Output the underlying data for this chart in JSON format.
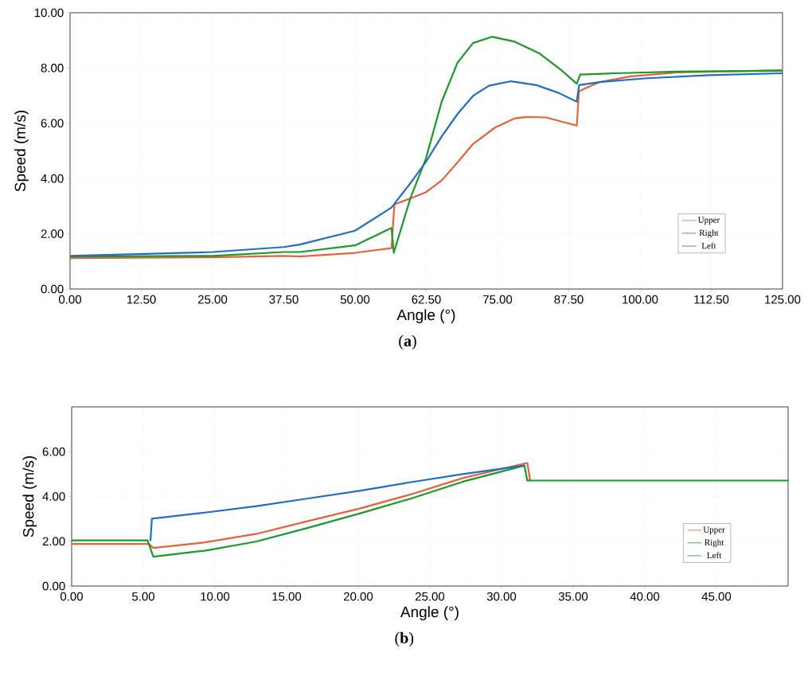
{
  "chart_data": [
    {
      "type": "line",
      "xlabel": "Angle (°)",
      "ylabel": "Speed (m/s)",
      "annotations": [
        "(**a**)"
      ],
      "xlim": [
        0,
        125
      ],
      "ylim": [
        0,
        10
      ],
      "xticks": [
        {
          "value": 0,
          "label": "0.00"
        },
        {
          "value": 12.5,
          "label": "12.50"
        },
        {
          "value": 25,
          "label": "25.00"
        },
        {
          "value": 37.5,
          "label": "37.50"
        },
        {
          "value": 50,
          "label": "50.00"
        },
        {
          "value": 62.5,
          "label": "62.50"
        },
        {
          "value": 75,
          "label": "75.00"
        },
        {
          "value": 87.5,
          "label": "87.50"
        },
        {
          "value": 100,
          "label": "100.00"
        },
        {
          "value": 112.5,
          "label": "112.50"
        },
        {
          "value": 125,
          "label": "125.00"
        }
      ],
      "yticks": [
        {
          "value": 0,
          "label": "0.00"
        },
        {
          "value": 2,
          "label": "2.00"
        },
        {
          "value": 4,
          "label": "4.00"
        },
        {
          "value": 6,
          "label": "6.00"
        },
        {
          "value": 8,
          "label": "8.00"
        },
        {
          "value": 10,
          "label": "10.00"
        }
      ],
      "grid": true,
      "legend": "bottom right",
      "marker": "none",
      "line_style": "solid",
      "series": [
        {
          "name": "Upper",
          "color": "#e8613a",
          "x": [
            0,
            25,
            37.5,
            40.3,
            50,
            56.4,
            56.9,
            59.7,
            62.4,
            65.2,
            68.0,
            70.7,
            74.6,
            77.9,
            80.1,
            83.5,
            86.8,
            88.9,
            89.3,
            92.9,
            98.4,
            106.7,
            125
          ],
          "values": [
            1.12,
            1.15,
            1.2,
            1.18,
            1.31,
            1.48,
            3.06,
            3.28,
            3.5,
            3.93,
            4.59,
            5.25,
            5.85,
            6.17,
            6.23,
            6.21,
            6.03,
            5.92,
            7.16,
            7.49,
            7.7,
            7.84,
            7.92
          ]
        },
        {
          "name": "Right",
          "color": "#1a9a2a",
          "x": [
            0,
            25,
            37.5,
            40.3,
            50,
            56.4,
            56.8,
            59.7,
            62.4,
            65.2,
            68.0,
            70.7,
            74.0,
            77.9,
            82.4,
            86.2,
            88.9,
            89.5,
            95.6,
            106.7,
            125
          ],
          "values": [
            1.18,
            1.2,
            1.34,
            1.34,
            1.58,
            2.21,
            1.31,
            3.28,
            4.7,
            6.78,
            8.2,
            8.9,
            9.13,
            8.96,
            8.52,
            7.92,
            7.43,
            7.76,
            7.81,
            7.87,
            7.9
          ]
        },
        {
          "name": "Left",
          "color": "#1f6fc4",
          "x": [
            0,
            25,
            37.5,
            40.3,
            50,
            56.4,
            59.7,
            62.4,
            65.2,
            68.0,
            70.7,
            73.5,
            77.4,
            81.8,
            85.7,
            88.9,
            89.3,
            92.9,
            101.2,
            112.2,
            125
          ],
          "values": [
            1.2,
            1.34,
            1.52,
            1.61,
            2.11,
            2.95,
            3.83,
            4.59,
            5.52,
            6.34,
            6.99,
            7.36,
            7.52,
            7.38,
            7.1,
            6.78,
            7.38,
            7.49,
            7.63,
            7.74,
            7.81
          ]
        }
      ]
    },
    {
      "type": "line",
      "xlabel": "Angle (°)",
      "ylabel": "Speed (m/s)",
      "annotations": [
        "(**b**)"
      ],
      "xlim": [
        0,
        50
      ],
      "ylim": [
        0,
        8
      ],
      "xticks": [
        {
          "value": 0,
          "label": "0.00"
        },
        {
          "value": 5,
          "label": "5.00"
        },
        {
          "value": 10,
          "label": "10.00"
        },
        {
          "value": 15,
          "label": "15.00"
        },
        {
          "value": 20,
          "label": "20.00"
        },
        {
          "value": 25,
          "label": "25.00"
        },
        {
          "value": 30,
          "label": "30.00"
        },
        {
          "value": 35,
          "label": "35.00"
        },
        {
          "value": 40,
          "label": "40.00"
        },
        {
          "value": 45,
          "label": "45.00"
        }
      ],
      "yticks": [
        {
          "value": 0,
          "label": "0.00"
        },
        {
          "value": 2,
          "label": "2.00"
        },
        {
          "value": 4,
          "label": "4.00"
        },
        {
          "value": 6,
          "label": "6.00"
        }
      ],
      "grid": true,
      "legend": "bottom right",
      "marker": "none",
      "line_style": "solid",
      "series": [
        {
          "name": "Upper",
          "color": "#e8613a",
          "x": [
            0,
            5.4,
            5.7,
            9.3,
            12.9,
            16.5,
            20.1,
            23.7,
            27.3,
            31.8,
            32.0
          ],
          "values": [
            1.88,
            1.88,
            1.7,
            1.95,
            2.33,
            2.9,
            3.46,
            4.1,
            4.82,
            5.5,
            4.71
          ]
        },
        {
          "name": "Right",
          "color": "#1a9a2a",
          "x": [
            0,
            5.3,
            5.7,
            9.3,
            12.9,
            16.5,
            20.1,
            23.7,
            27.3,
            31.6,
            31.8,
            50
          ],
          "values": [
            2.04,
            2.04,
            1.31,
            1.58,
            1.99,
            2.6,
            3.24,
            3.91,
            4.66,
            5.38,
            4.71,
            4.71
          ]
        },
        {
          "name": "Left",
          "color": "#1f6fc4",
          "x": [
            5.5,
            5.6,
            9.3,
            12.9,
            16.5,
            20.1,
            23.7,
            27.3,
            31.6
          ],
          "values": [
            2.04,
            3.01,
            3.28,
            3.57,
            3.91,
            4.25,
            4.64,
            5.0,
            5.38
          ]
        }
      ]
    }
  ]
}
